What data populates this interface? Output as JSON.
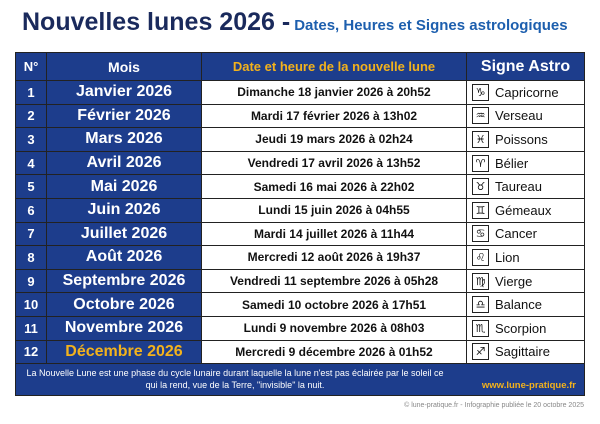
{
  "header": {
    "title": "Nouvelles lunes 2026 -",
    "subtitle": "Dates, Heures et Signes astrologiques"
  },
  "table": {
    "columns": [
      "N°",
      "Mois",
      "Date et heure de la nouvelle lune",
      "Signe Astro"
    ],
    "rows": [
      [
        "1",
        "Janvier 2026",
        "Dimanche 18 janvier 2026 à 20h52",
        "♑",
        "Capricorne"
      ],
      [
        "2",
        "Février 2026",
        "Mardi 17 février 2026 à 13h02",
        "♒",
        "Verseau"
      ],
      [
        "3",
        "Mars 2026",
        "Jeudi 19 mars 2026 à 02h24",
        "♓",
        "Poissons"
      ],
      [
        "4",
        "Avril 2026",
        "Vendredi 17 avril 2026 à 13h52",
        "♈",
        "Bélier"
      ],
      [
        "5",
        "Mai 2026",
        "Samedi 16 mai 2026 à 22h02",
        "♉",
        "Taureau"
      ],
      [
        "6",
        "Juin 2026",
        "Lundi 15 juin 2026 à 04h55",
        "♊",
        "Gémeaux"
      ],
      [
        "7",
        "Juillet 2026",
        "Mardi 14 juillet 2026 à 11h44",
        "♋",
        "Cancer"
      ],
      [
        "8",
        "Août 2026",
        "Mercredi 12 août 2026 à 19h37",
        "♌",
        "Lion"
      ],
      [
        "9",
        "Septembre 2026",
        "Vendredi 11 septembre 2026 à 05h28",
        "♍",
        "Vierge"
      ],
      [
        "10",
        "Octobre 2026",
        "Samedi 10 octobre 2026 à 17h51",
        "♎",
        "Balance"
      ],
      [
        "11",
        "Novembre 2026",
        "Lundi 9 novembre 2026 à 08h03",
        "♏",
        "Scorpion"
      ],
      [
        "12",
        "Décembre 2026",
        "Mercredi 9 décembre 2026 à 01h52",
        "♐",
        "Sagittaire"
      ]
    ]
  },
  "footer": {
    "note": "La Nouvelle Lune est une phase du cycle lunaire durant laquelle la lune n'est pas éclairée par le soleil ce qui la rend, vue de la Terre, \"invisible\" la nuit.",
    "website": "www.lune-pratique.fr",
    "credit": "© lune-pratique.fr - Infographie publiée le 20 octobre 2025"
  }
}
